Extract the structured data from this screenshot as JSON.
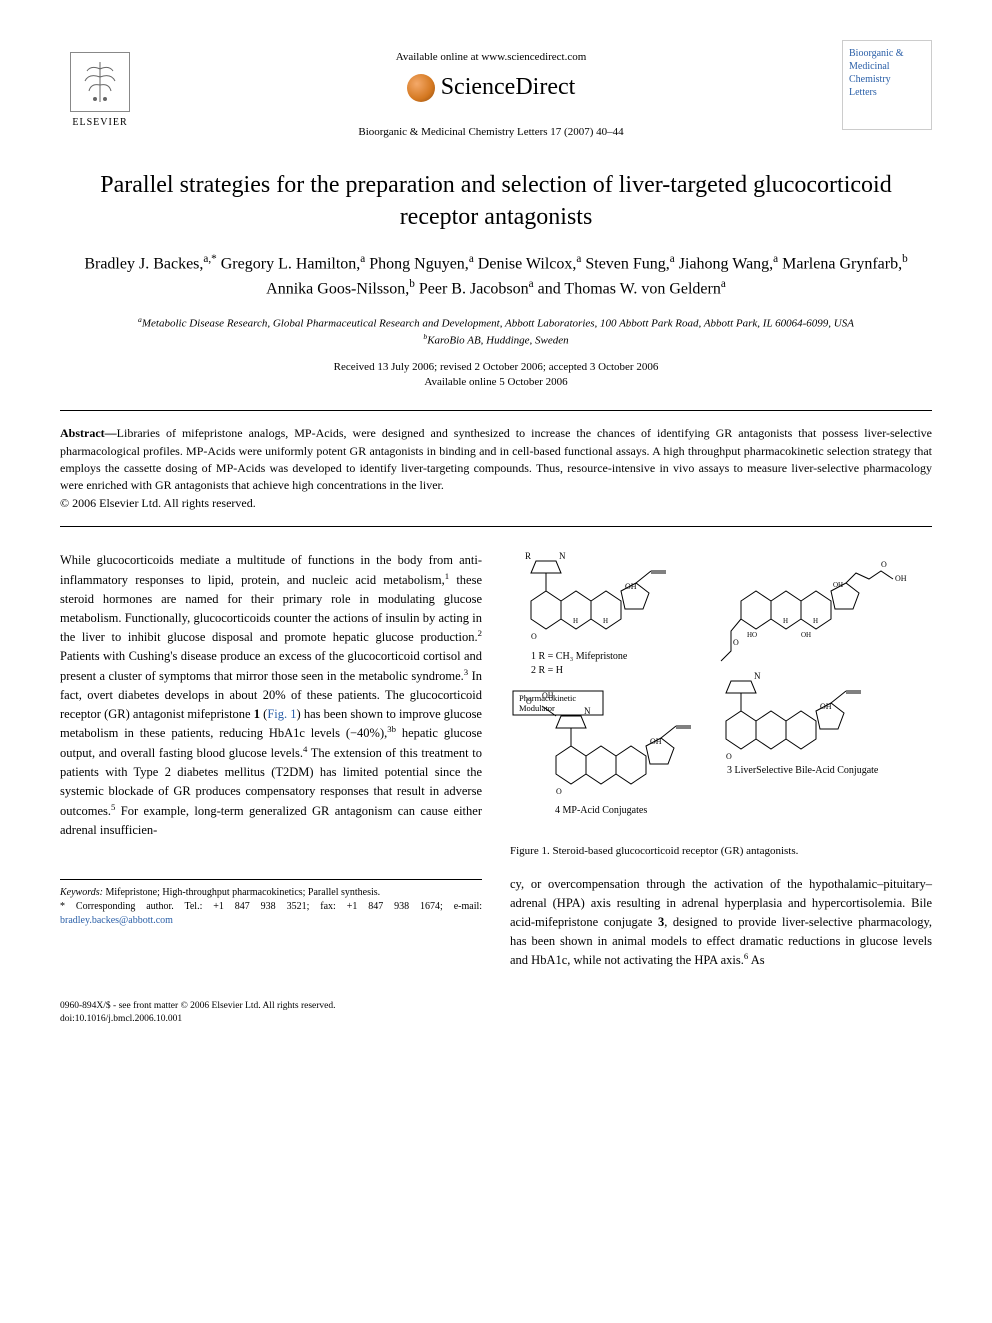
{
  "header": {
    "elsevier_label": "ELSEVIER",
    "available_text": "Available online at www.sciencedirect.com",
    "sd_label": "ScienceDirect",
    "citation": "Bioorganic & Medicinal Chemistry Letters 17 (2007) 40–44",
    "journal_cover_lines": [
      "Bioorganic &",
      "Medicinal",
      "Chemistry",
      "Letters"
    ]
  },
  "title": "Parallel strategies for the preparation and selection of liver-targeted glucocorticoid receptor antagonists",
  "authors_html": "Bradley J. Backes,<span class='sup'>a,*</span> Gregory L. Hamilton,<span class='sup'>a</span> Phong Nguyen,<span class='sup'>a</span> Denise Wilcox,<span class='sup'>a</span> Steven Fung,<span class='sup'>a</span> Jiahong Wang,<span class='sup'>a</span> Marlena Grynfarb,<span class='sup'>b</span> Annika Goos-Nilsson,<span class='sup'>b</span> Peer B. Jacobson<span class='sup'>a</span> and Thomas W. von Geldern<span class='sup'>a</span>",
  "affiliations": {
    "a": "Metabolic Disease Research, Global Pharmaceutical Research and Development, Abbott Laboratories, 100 Abbott Park Road, Abbott Park, IL 60064-6099, USA",
    "b": "KaroBio AB, Huddinge, Sweden"
  },
  "dates": {
    "received": "Received 13 July 2006; revised 2 October 2006; accepted 3 October 2006",
    "online": "Available online 5 October 2006"
  },
  "abstract": {
    "label": "Abstract—",
    "body": "Libraries of mifepristone analogs, MP-Acids, were designed and synthesized to increase the chances of identifying GR antagonists that possess liver-selective pharmacological profiles. MP-Acids were uniformly potent GR antagonists in binding and in cell-based functional assays. A high throughput pharmacokinetic selection strategy that employs the cassette dosing of MP-Acids was developed to identify liver-targeting compounds. Thus, resource-intensive in vivo assays to measure liver-selective pharmacology were enriched with GR antagonists that achieve high concentrations in the liver.",
    "copyright": "© 2006 Elsevier Ltd. All rights reserved."
  },
  "body_left": "While glucocorticoids mediate a multitude of functions in the body from anti-inflammatory responses to lipid, protein, and nucleic acid metabolism,<span class='sup'>1</span> these steroid hormones are named for their primary role in modulating glucose metabolism. Functionally, glucocorticoids counter the actions of insulin by acting in the liver to inhibit glucose disposal and promote hepatic glucose production.<span class='sup'>2</span> Patients with Cushing's disease produce an excess of the glucocorticoid cortisol and present a cluster of symptoms that mirror those seen in the metabolic syndrome.<span class='sup'>3</span> In fact, overt diabetes develops in about 20% of these patients. The glucocorticoid receptor (GR) antagonist mifepristone <b>1</b> (<span class='link'>Fig. 1</span>) has been shown to improve glucose metabolism in these patients, reducing HbA1c levels (−40%),<span class='sup'>3b</span> hepatic glucose output, and overall fasting blood glucose levels.<span class='sup'>4</span> The extension of this treatment to patients with Type 2 diabetes mellitus (T2DM) has limited potential since the systemic blockade of GR produces compensatory responses that result in adverse outcomes.<span class='sup'>5</span> For example, long-term generalized GR antagonism can cause either adrenal insufficien-",
  "body_right": "cy, or overcompensation through the activation of the hypothalamic–pituitary–adrenal (HPA) axis resulting in adrenal hyperplasia and hypercortisolemia. Bile acid-mifepristone conjugate <b>3</b>, designed to provide liver-selective pharmacology, has been shown in animal models to effect dramatic reductions in glucose levels and HbA1c, while not activating the HPA axis.<span class='sup'>6</span> As",
  "figure1": {
    "caption": "Figure 1. Steroid-based glucocorticoid receptor (GR) antagonists.",
    "labels": {
      "compound1": "1 R = CH₃ Mifepristone",
      "compound2": "2 R = H",
      "compound3": "3 LiverSelective Bile-Acid Conjugate",
      "compound4": "4 MP-Acid Conjugates",
      "pk_box": "Pharmacokinetic Modulator"
    },
    "colors": {
      "stroke": "#000000",
      "label_color": "#000000",
      "box_border": "#000000"
    }
  },
  "keywords": {
    "label": "Keywords:",
    "text": "Mifepristone; High-throughput pharmacokinetics; Parallel synthesis."
  },
  "corresponding": {
    "label": "* Corresponding author.",
    "tel": "Tel.: +1 847 938 3521;",
    "fax": "fax: +1 847 938 1674;",
    "email_label": "e-mail:",
    "email": "bradley.backes@abbott.com"
  },
  "footer": {
    "line1": "0960-894X/$ - see front matter © 2006 Elsevier Ltd. All rights reserved.",
    "line2": "doi:10.1016/j.bmcl.2006.10.001"
  }
}
